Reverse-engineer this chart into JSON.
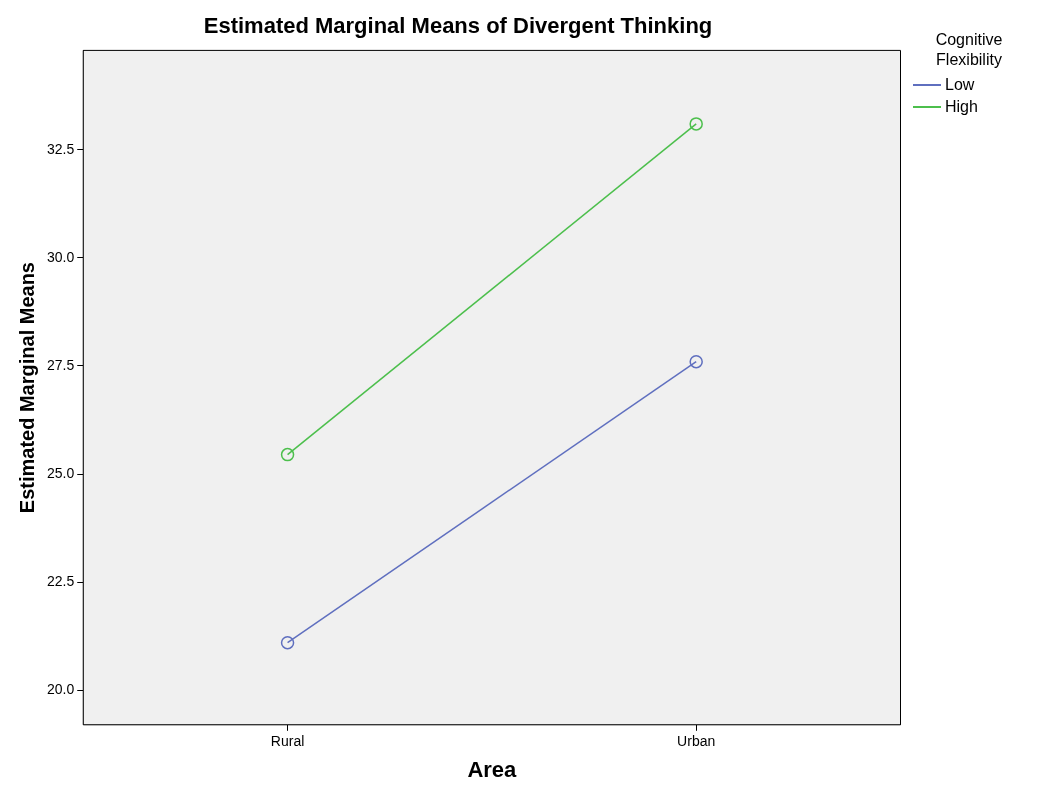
{
  "chart_data": {
    "type": "line",
    "title": "Estimated Marginal Means of Divergent Thinking",
    "xlabel": "Area",
    "ylabel": "Estimated Marginal Means",
    "legend_title": "Cognitive Flexibility",
    "categories": [
      "Rural",
      "Urban"
    ],
    "series": [
      {
        "name": "Low",
        "color": "#5f6fbf",
        "values": [
          21.1,
          27.6
        ]
      },
      {
        "name": "High",
        "color": "#4cbf4c",
        "values": [
          25.45,
          33.1
        ]
      }
    ],
    "ylim": [
      19.2,
      34.8
    ],
    "yticks": [
      {
        "value": 20,
        "label": "20.0"
      },
      {
        "value": 22.5,
        "label": "22.5"
      },
      {
        "value": 25,
        "label": "25.0"
      },
      {
        "value": 27.5,
        "label": "27.5"
      },
      {
        "value": 30,
        "label": "30.0"
      },
      {
        "value": 32.5,
        "label": "32.5"
      }
    ],
    "grid": false,
    "legend": "top right",
    "marker": "circle",
    "line_style": "solid"
  }
}
